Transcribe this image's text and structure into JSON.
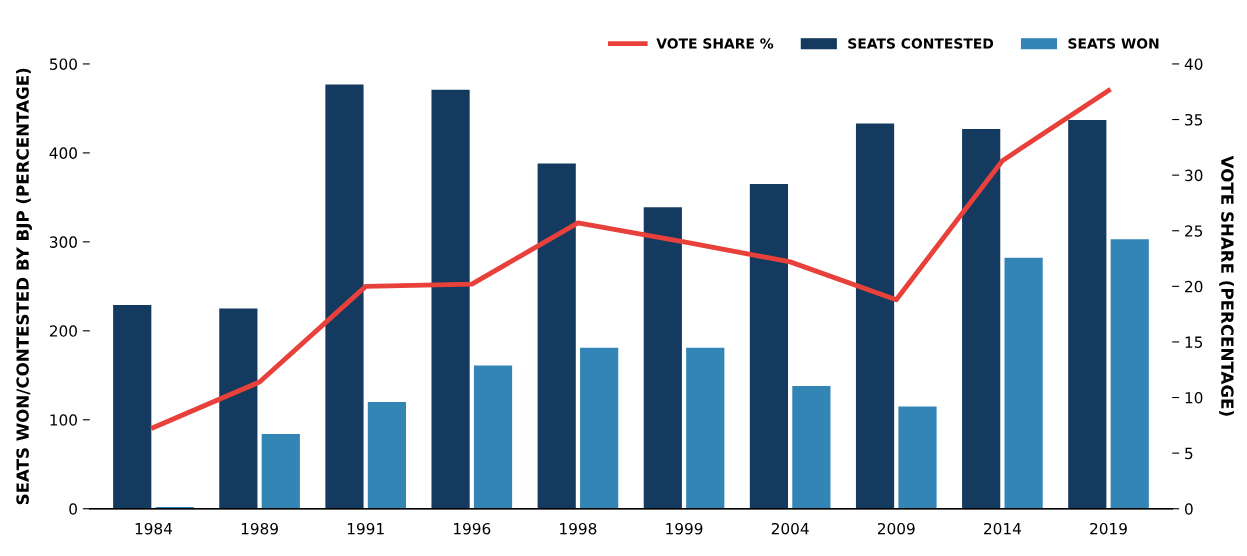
{
  "chart_data": {
    "type": "bar",
    "categories": [
      "1984",
      "1989",
      "1991",
      "1996",
      "1998",
      "1999",
      "2004",
      "2009",
      "2014",
      "2019"
    ],
    "ylabel": "SEATS WON/CONTESTED BY BJP (PERCENTAGE)",
    "y2label": "VOTE SHARE (PERCENTAGE)",
    "ylim": [
      0,
      500
    ],
    "yticks": [
      0,
      100,
      200,
      300,
      400,
      500
    ],
    "y2lim": [
      0,
      40
    ],
    "y2ticks": [
      0,
      5,
      10,
      15,
      20,
      25,
      30,
      35,
      40
    ],
    "grid": false,
    "legend": "top right",
    "series": [
      {
        "name": "VOTE SHARE %",
        "type": "line",
        "axis": "y2",
        "color": "#e8403a",
        "values": [
          7.3,
          11.4,
          20.0,
          20.2,
          25.7,
          24.0,
          22.2,
          18.8,
          31.3,
          37.6
        ]
      },
      {
        "name": "SEATS CONTESTED",
        "color": "#143a5f",
        "values": [
          229,
          225,
          477,
          471,
          388,
          339,
          365,
          433,
          427,
          437
        ]
      },
      {
        "name": "SEATS WON",
        "color": "#3385b5",
        "values": [
          2,
          84,
          120,
          161,
          181,
          181,
          138,
          115,
          282,
          303
        ]
      }
    ]
  }
}
